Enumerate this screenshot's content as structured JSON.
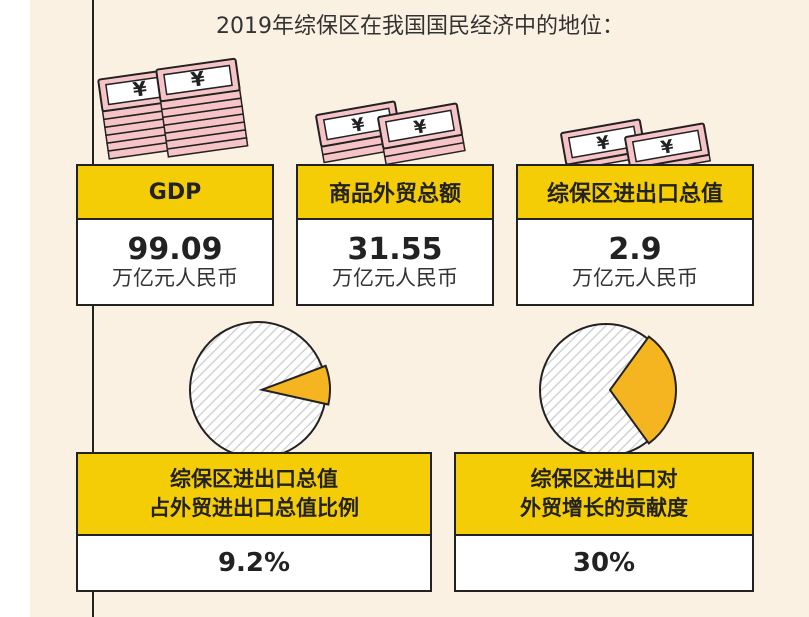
{
  "page": {
    "title": "2019年综保区在我国国民经济中的地位："
  },
  "cards": {
    "gdp": {
      "label": "GDP",
      "value": "99.09",
      "unit": "万亿元人民币"
    },
    "foreign_trade": {
      "label": "商品外贸总额",
      "value": "31.55",
      "unit": "万亿元人民币"
    },
    "zone_trade": {
      "label": "综保区进出口总值",
      "value": "2.9",
      "unit": "万亿元人民币"
    }
  },
  "share_card": {
    "label_line1": "综保区进出口总值",
    "label_line2": "占外贸进出口总值比例",
    "value": "9.2%",
    "fraction": 0.092
  },
  "contribution_card": {
    "label_line1": "综保区进出口对",
    "label_line2": "外贸增长的贡献度",
    "value": "30%",
    "fraction": 0.3
  },
  "banknote_symbol": "¥",
  "colors": {
    "accent_yellow": "#f5cd07",
    "pie_highlight": "#f5b520",
    "banknote_pink": "#f6c4c6",
    "outline": "#222222",
    "background": "#fbf1e2"
  }
}
